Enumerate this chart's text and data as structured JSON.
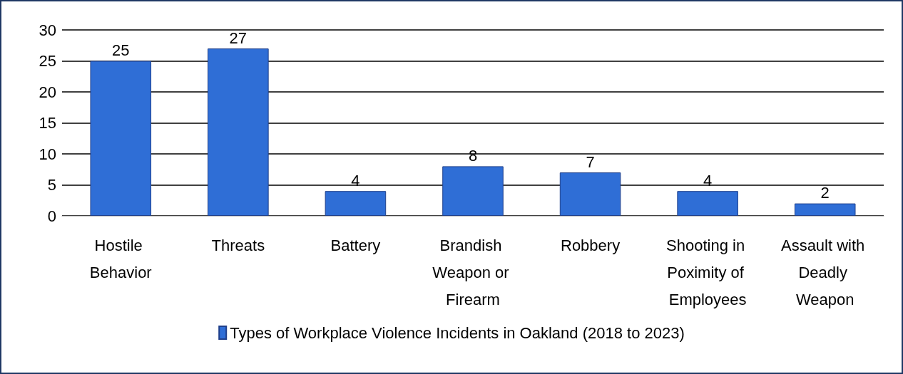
{
  "chart_data": {
    "type": "bar",
    "categories": [
      "Hostile Behavior",
      "Threats",
      "Battery",
      "Brandish Weapon or Firearm",
      "Robbery",
      "Shooting in Poximity of Employees",
      "Assault with Deadly Weapon"
    ],
    "series": [
      {
        "name": "Types of Workplace Violence Incidents in Oakland (2018 to 2023)",
        "color": "#2f6ed6",
        "values": [
          25,
          27,
          4,
          8,
          7,
          4,
          2
        ]
      }
    ],
    "ylim": [
      0,
      30
    ],
    "yticks": [
      0,
      5,
      10,
      15,
      20,
      25,
      30
    ],
    "grid": "y",
    "legend": "bottom",
    "data_labels": true
  }
}
